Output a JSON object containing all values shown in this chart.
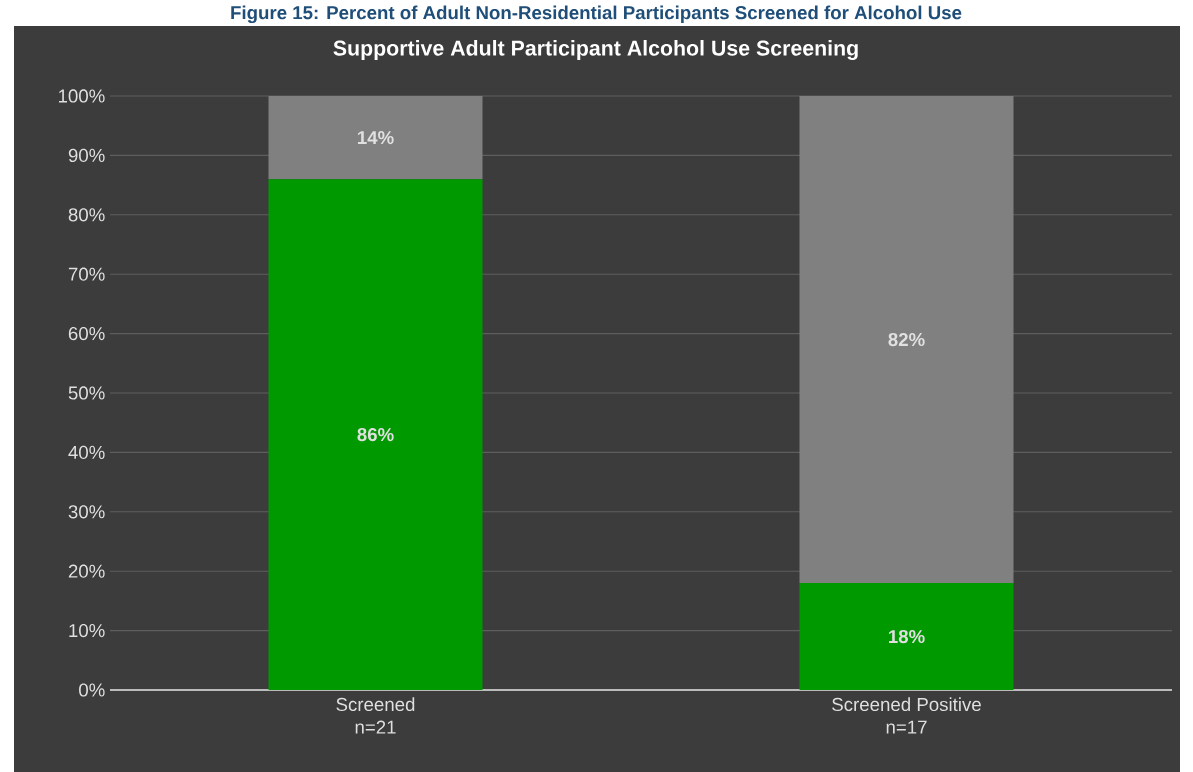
{
  "chart_data": {
    "type": "bar",
    "stacked": true,
    "title": "Supportive Adult Participant Alcohol Use Screening",
    "annotations": [
      "Figure 15: Percent of Adult Non-Residential Participants Screened for Alcohol Use"
    ],
    "categories": [
      "Screened\nn=21",
      "Screened Positive\nn=17"
    ],
    "series": [
      {
        "color": "#009900",
        "values": [
          86,
          18
        ],
        "value_labels": [
          "86%",
          "18%"
        ]
      },
      {
        "color": "#808080",
        "values": [
          14,
          82
        ],
        "value_labels": [
          "14%",
          "82%"
        ]
      }
    ],
    "ylim": [
      0,
      100
    ],
    "yticks": [
      {
        "value": 0,
        "label": "0%"
      },
      {
        "value": 10,
        "label": "10%"
      },
      {
        "value": 20,
        "label": "20%"
      },
      {
        "value": 30,
        "label": "30%"
      },
      {
        "value": 40,
        "label": "40%"
      },
      {
        "value": 50,
        "label": "50%"
      },
      {
        "value": 60,
        "label": "60%"
      },
      {
        "value": 70,
        "label": "70%"
      },
      {
        "value": 80,
        "label": "80%"
      },
      {
        "value": 90,
        "label": "90%"
      },
      {
        "value": 100,
        "label": "100%"
      }
    ],
    "grid": "y"
  }
}
